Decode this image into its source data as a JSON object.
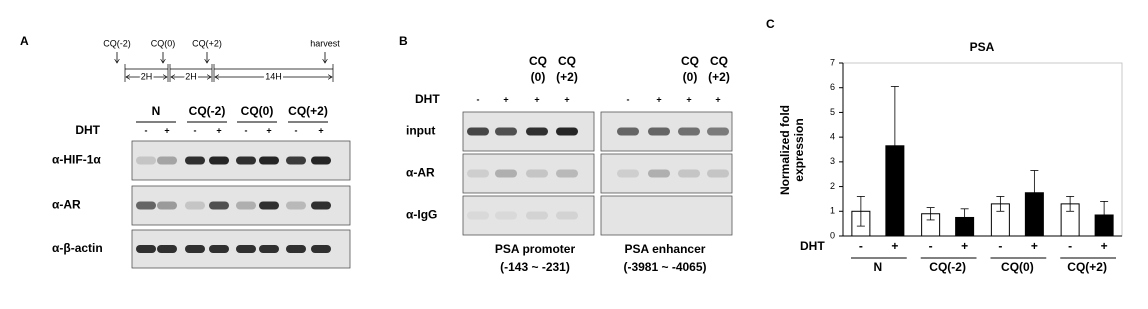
{
  "panel_a": {
    "label": "A",
    "timeline": {
      "points": [
        "CQ(-2)",
        "CQ(0)",
        "CQ(+2)",
        "harvest"
      ],
      "intervals": [
        "2H",
        "2H",
        "14H"
      ]
    },
    "groups": [
      "N",
      "CQ(-2)",
      "CQ(0)",
      "CQ(+2)"
    ],
    "treatment": "DHT",
    "lanes": [
      "-",
      "+",
      "-",
      "+",
      "-",
      "+",
      "-",
      "+"
    ],
    "rows": [
      "α-HIF-1α",
      "α-AR",
      "α-β-actin"
    ]
  },
  "panel_b": {
    "label": "B",
    "headers": [
      [
        "CQ",
        "(0)"
      ],
      [
        "CQ",
        "(+2)"
      ],
      [
        "CQ",
        "(0)"
      ],
      [
        "CQ",
        "(+2)"
      ]
    ],
    "treatment": "DHT",
    "lanes": [
      "-",
      "+",
      "+",
      "+",
      "-",
      "+",
      "+",
      "+"
    ],
    "rows": [
      "input",
      "α-AR",
      "α-IgG"
    ],
    "regions": [
      {
        "name": "PSA promoter",
        "range": "(-143 ~ -231)"
      },
      {
        "name": "PSA enhancer",
        "range": "(-3981 ~ -4065)"
      }
    ]
  },
  "chart_data": {
    "type": "bar",
    "label": "C",
    "title": "PSA",
    "y_label": [
      "Normalized fold",
      "expression"
    ],
    "treatment": "DHT",
    "categories": [
      "N",
      "CQ(-2)",
      "CQ(0)",
      "CQ(+2)"
    ],
    "series": [
      {
        "name": "-",
        "color": "#ffffff",
        "values": [
          1.0,
          0.9,
          1.3,
          1.3
        ],
        "errors": [
          0.6,
          0.25,
          0.3,
          0.3
        ]
      },
      {
        "name": "+",
        "color": "#000000",
        "values": [
          3.65,
          0.75,
          1.75,
          0.85
        ],
        "errors": [
          2.4,
          0.35,
          0.9,
          0.55
        ]
      }
    ],
    "ylim": [
      0,
      7
    ],
    "yticks": [
      0,
      1,
      2,
      3,
      4,
      5,
      6,
      7
    ]
  }
}
